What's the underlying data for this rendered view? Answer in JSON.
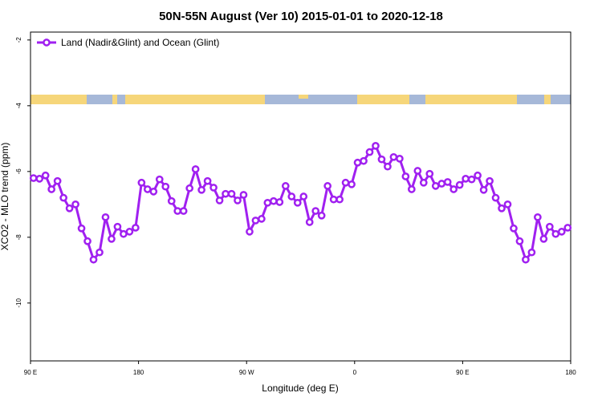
{
  "chart_data": {
    "type": "line",
    "title": "50N-55N August (Ver 10)   2015-01-01 to 2020-12-18",
    "x_label": "Longitude (deg E)",
    "y_label": "XCO2 - MLO trend (ppm)",
    "x": [
      92.5,
      97.5,
      102.5,
      107.5,
      112.5,
      117.5,
      122.5,
      127.5,
      132.5,
      137.5,
      142.5,
      147.5,
      152.5,
      157.5,
      162.5,
      167.5,
      172.5,
      177.5,
      182.5,
      187.5,
      192.5,
      197.5,
      202.5,
      207.5,
      212.5,
      217.5,
      222.5,
      227.5,
      232.5,
      237.5,
      242.5,
      247.5,
      252.5,
      257.5,
      262.5,
      267.5,
      272.5,
      277.5,
      282.5,
      287.5,
      292.5,
      297.5,
      302.5,
      307.5,
      312.5,
      317.5,
      322.5,
      327.5,
      332.5,
      337.5,
      342.5,
      347.5,
      352.5,
      357.5,
      362.5,
      367.5,
      372.5,
      377.5,
      382.5,
      387.5,
      392.5,
      397.5,
      402.5,
      407.5,
      412.5,
      417.5,
      422.5,
      427.5,
      432.5,
      437.5,
      442.5,
      447.5,
      452.5,
      457.5,
      462.5,
      467.5,
      472.5,
      477.5,
      482.5,
      487.5,
      492.5,
      497.5,
      502.5,
      507.5,
      512.5,
      517.5,
      522.5,
      527.5,
      532.5,
      537.5
    ],
    "series": [
      {
        "name": "Land (Nadir&Glint) and Ocean (Glint)",
        "color": "#a020f0",
        "values": [
          -6.2,
          -6.22,
          -6.12,
          -6.54,
          -6.29,
          -6.8,
          -7.12,
          -7.0,
          -7.73,
          -8.12,
          -8.68,
          -8.46,
          -7.39,
          -8.05,
          -7.68,
          -7.9,
          -7.83,
          -7.71,
          -6.34,
          -6.54,
          -6.61,
          -6.24,
          -6.46,
          -6.9,
          -7.2,
          -7.2,
          -6.51,
          -5.93,
          -6.56,
          -6.29,
          -6.49,
          -6.88,
          -6.68,
          -6.68,
          -6.88,
          -6.71,
          -7.83,
          -7.49,
          -7.44,
          -6.95,
          -6.9,
          -6.93,
          -6.44,
          -6.76,
          -6.95,
          -6.76,
          -7.54,
          -7.2,
          -7.34,
          -6.44,
          -6.85,
          -6.85,
          -6.34,
          -6.39,
          -5.73,
          -5.68,
          -5.41,
          -5.22,
          -5.63,
          -5.85,
          -5.56,
          -5.61,
          -6.15,
          -6.54,
          -5.98,
          -6.34,
          -6.07,
          -6.44,
          -6.37,
          -6.32,
          -6.54,
          -6.41,
          -6.22,
          -6.24,
          -6.12,
          -6.56,
          -6.29,
          -6.8,
          -7.12,
          -7.0,
          -7.73,
          -8.12,
          -8.68,
          -8.46,
          -7.39,
          -8.05,
          -7.68,
          -7.9,
          -7.83,
          -7.71
        ]
      }
    ],
    "xlim": [
      90,
      540
    ],
    "xticks": [
      {
        "value": 90,
        "label": "90 E"
      },
      180,
      {
        "value": 270,
        "label": "90 W"
      },
      0,
      {
        "value": 450,
        "label": "90 E"
      },
      {
        "value": 540,
        "label": "180"
      }
    ],
    "ylim": [
      -11.76,
      -1.76
    ],
    "yticks": [
      -10,
      -8,
      -6,
      -4,
      -2
    ],
    "legend": "top-left"
  }
}
